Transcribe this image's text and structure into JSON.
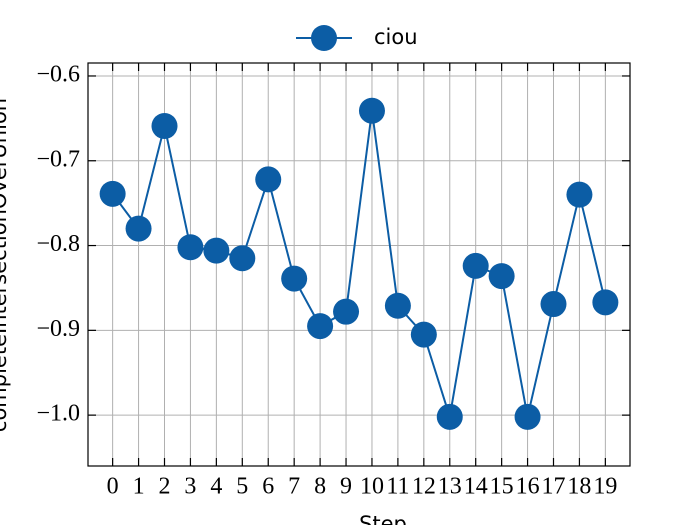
{
  "chart_data": {
    "type": "line",
    "xlabel": "Step",
    "ylabel": "completeIntersectionOverUnion",
    "x": [
      0,
      1,
      2,
      3,
      4,
      5,
      6,
      7,
      8,
      9,
      10,
      11,
      12,
      13,
      14,
      15,
      16,
      17,
      18,
      19
    ],
    "series": [
      {
        "name": "ciou",
        "color": "#0c5da5",
        "values": [
          -0.739,
          -0.78,
          -0.659,
          -0.802,
          -0.806,
          -0.815,
          -0.722,
          -0.839,
          -0.895,
          -0.878,
          -0.641,
          -0.871,
          -0.905,
          -1.002,
          -0.824,
          -0.836,
          -1.002,
          -0.869,
          -0.74,
          -0.867
        ]
      }
    ],
    "xlim": [
      -0.95,
      19.95
    ],
    "xticks": [
      0,
      1,
      2,
      3,
      4,
      5,
      6,
      7,
      8,
      9,
      10,
      11,
      12,
      13,
      14,
      15,
      16,
      17,
      18,
      19
    ],
    "ylim": [
      -1.06,
      -0.5847
    ],
    "yticks": [
      {
        "value": -1.0,
        "label": "−1.0"
      },
      {
        "value": -0.9,
        "label": "−0.9"
      },
      {
        "value": -0.8,
        "label": "−0.8"
      },
      {
        "value": -0.7,
        "label": "−0.7"
      },
      {
        "value": -0.6,
        "label": "−0.6"
      }
    ],
    "grid": true,
    "legend": "top"
  }
}
